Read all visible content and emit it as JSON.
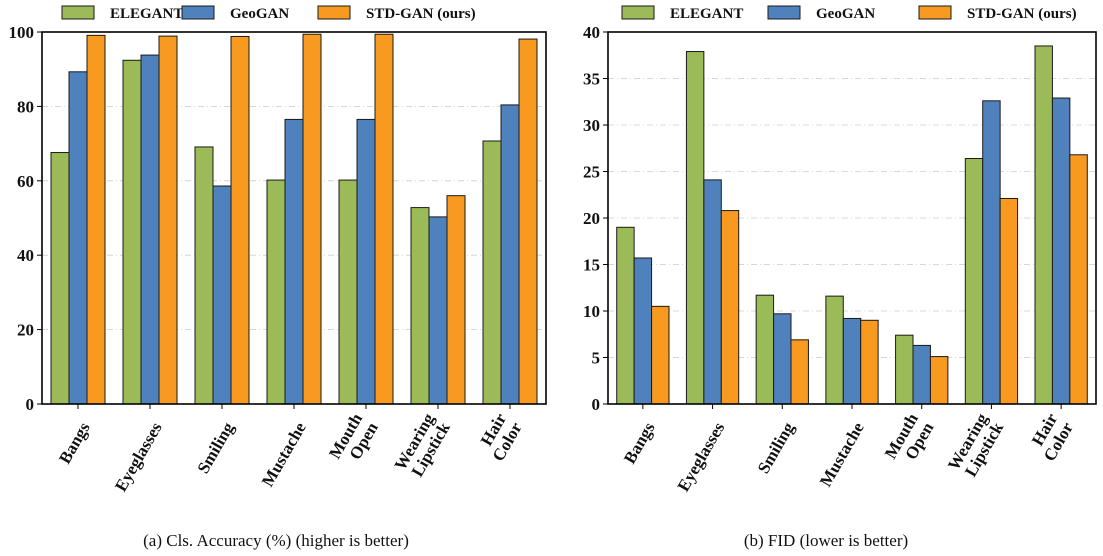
{
  "colors": {
    "ELEGANT": "#9bbb59",
    "GeoGAN": "#4f81bd",
    "STD-GAN (ours)": "#f79a1f",
    "grid": "#cccccc"
  },
  "chart_data": [
    {
      "type": "bar",
      "caption": "(a)  Cls. Accuracy (%) (higher is better)",
      "categories": [
        [
          "Bangs"
        ],
        [
          "Eyeglasses"
        ],
        [
          "Smiling"
        ],
        [
          "Mustache"
        ],
        [
          "Mouth",
          "Open"
        ],
        [
          "Wearing",
          "Lipstick"
        ],
        [
          "Hair",
          "Color"
        ]
      ],
      "series": [
        {
          "name": "ELEGANT",
          "values": [
            67.6,
            92.4,
            69.1,
            60.2,
            60.2,
            52.8,
            70.7
          ]
        },
        {
          "name": "GeoGAN",
          "values": [
            89.3,
            93.8,
            58.6,
            76.5,
            76.5,
            50.3,
            80.4
          ]
        },
        {
          "name": "STD-GAN (ours)",
          "values": [
            99.1,
            98.9,
            98.8,
            99.4,
            99.4,
            56.0,
            98.1
          ]
        }
      ],
      "ylim": [
        0,
        100
      ],
      "yticks": [
        0,
        20,
        40,
        60,
        80,
        100
      ],
      "grid": "horizontal dash-dot",
      "legend": "top"
    },
    {
      "type": "bar",
      "caption": "(b)  FID (lower is better)",
      "categories": [
        [
          "Bangs"
        ],
        [
          "Eyeglasses"
        ],
        [
          "Smiling"
        ],
        [
          "Mustache"
        ],
        [
          "Mouth",
          "Open"
        ],
        [
          "Wearing",
          "Lipstick"
        ],
        [
          "Hair",
          "Color"
        ]
      ],
      "series": [
        {
          "name": "ELEGANT",
          "values": [
            19.0,
            37.9,
            11.7,
            11.6,
            7.4,
            26.4,
            38.5
          ]
        },
        {
          "name": "GeoGAN",
          "values": [
            15.7,
            24.1,
            9.7,
            9.2,
            6.3,
            32.6,
            32.9
          ]
        },
        {
          "name": "STD-GAN (ours)",
          "values": [
            10.5,
            20.8,
            6.9,
            9.0,
            5.1,
            22.1,
            26.8
          ]
        }
      ],
      "ylim": [
        0,
        40
      ],
      "yticks": [
        0,
        5,
        10,
        15,
        20,
        25,
        30,
        35,
        40
      ],
      "grid": "horizontal dash-dot",
      "legend": "top"
    }
  ]
}
